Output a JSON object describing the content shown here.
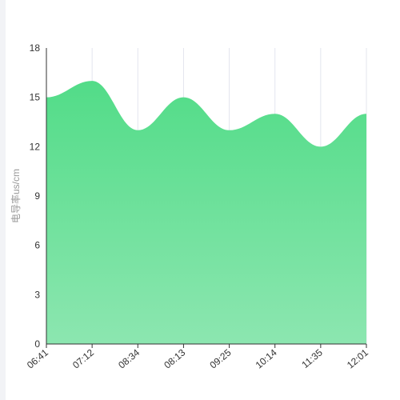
{
  "chart_data": {
    "type": "area",
    "title": "",
    "xlabel": "",
    "ylabel": "电导率us/cm",
    "categories": [
      "06:41",
      "07:12",
      "08:34",
      "08:13",
      "09:25",
      "10:14",
      "11:35",
      "12:01"
    ],
    "values": [
      15,
      16,
      13,
      15,
      13,
      14,
      12,
      14
    ],
    "ylim": [
      0,
      18
    ],
    "yticks": [
      0,
      3,
      6,
      9,
      12,
      15,
      18
    ],
    "grid": "vertical",
    "legend": "none",
    "colors": {
      "fill_top": "#52dc88",
      "fill_bottom": "#8ce6b0",
      "grid": "#e3e5ee",
      "axis": "#333333"
    }
  }
}
